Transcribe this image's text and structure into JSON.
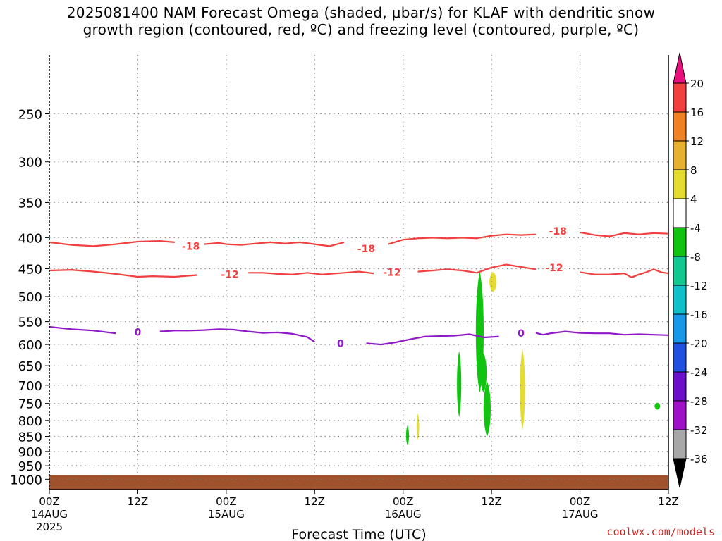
{
  "chart_data": {
    "type": "heatmap",
    "title_line1": "2025081400 NAM Forecast Omega (shaded, μbar/s) for KLAF with dendritic snow",
    "title_line2": "growth region (contoured, red, ºC) and freezing level (contoured, purple, ºC)",
    "xlabel": "Forecast Time (UTC)",
    "ylabel": "",
    "x_unit": "hours since 2025-08-14 00Z",
    "xlim": [
      0,
      84
    ],
    "x_ticks": [
      {
        "h": 0,
        "l1": "00Z",
        "l2": "14AUG",
        "l3": "2025"
      },
      {
        "h": 12,
        "l1": "12Z",
        "l2": "",
        "l3": ""
      },
      {
        "h": 24,
        "l1": "00Z",
        "l2": "15AUG",
        "l3": ""
      },
      {
        "h": 36,
        "l1": "12Z",
        "l2": "",
        "l3": ""
      },
      {
        "h": 48,
        "l1": "00Z",
        "l2": "16AUG",
        "l3": ""
      },
      {
        "h": 60,
        "l1": "12Z",
        "l2": "",
        "l3": ""
      },
      {
        "h": 72,
        "l1": "00Z",
        "l2": "17AUG",
        "l3": ""
      },
      {
        "h": 84,
        "l1": "12Z",
        "l2": "",
        "l3": ""
      }
    ],
    "y_scale": "log",
    "y_unit": "hPa",
    "ylim": [
      1040,
      200
    ],
    "y_ticks": [
      250,
      300,
      350,
      400,
      450,
      500,
      550,
      600,
      650,
      700,
      750,
      800,
      850,
      900,
      950,
      1000
    ],
    "grid": true,
    "colorbar": {
      "label_values": [
        "20",
        "16",
        "12",
        "8",
        "4",
        "-4",
        "-8",
        "-12",
        "-16",
        "-20",
        "-24",
        "-28",
        "-32",
        "-36"
      ],
      "colors": [
        "#e8107e",
        "#f04040",
        "#f08020",
        "#e8b030",
        "#e4dc30",
        "#ffffff",
        "#10c410",
        "#10c890",
        "#10c0c8",
        "#1898e8",
        "#2050e0",
        "#6a10c8",
        "#a010c8",
        "#a8a8a8",
        "#000000"
      ]
    },
    "contours": [
      {
        "name": "-18",
        "color": "#f04040",
        "label_text": "-18",
        "points": [
          [
            0,
            407
          ],
          [
            3,
            411
          ],
          [
            6,
            413
          ],
          [
            9,
            410
          ],
          [
            12,
            406
          ],
          [
            15,
            405
          ],
          [
            17,
            407
          ],
          [
            19,
            413
          ],
          [
            21,
            410
          ],
          [
            23,
            408
          ],
          [
            24,
            410
          ],
          [
            26,
            411
          ],
          [
            28,
            409
          ],
          [
            30,
            407
          ],
          [
            32,
            409
          ],
          [
            34,
            407
          ],
          [
            36,
            410
          ],
          [
            38,
            413
          ],
          [
            40,
            407
          ],
          [
            42,
            410
          ],
          [
            44,
            414
          ],
          [
            46,
            410
          ],
          [
            48,
            403
          ],
          [
            50,
            401
          ],
          [
            52,
            400
          ],
          [
            54,
            401
          ],
          [
            56,
            400
          ],
          [
            58,
            401
          ],
          [
            60,
            397
          ],
          [
            62,
            395
          ],
          [
            64,
            396
          ],
          [
            66,
            395
          ],
          [
            68,
            393
          ],
          [
            70,
            395
          ],
          [
            72,
            392
          ],
          [
            74,
            396
          ],
          [
            76,
            398
          ],
          [
            78,
            393
          ],
          [
            80,
            395
          ],
          [
            82,
            393
          ],
          [
            84,
            394
          ]
        ],
        "labels": [
          [
            19.2,
            413
          ],
          [
            43,
            417
          ],
          [
            69,
            390
          ]
        ]
      },
      {
        "name": "-12",
        "color": "#f04040",
        "label_text": "-12",
        "points": [
          [
            0,
            453
          ],
          [
            3,
            452
          ],
          [
            6,
            455
          ],
          [
            9,
            459
          ],
          [
            12,
            464
          ],
          [
            14,
            463
          ],
          [
            17,
            464
          ],
          [
            20,
            461
          ],
          [
            23,
            459
          ],
          [
            25,
            458
          ],
          [
            27,
            457
          ],
          [
            29,
            457
          ],
          [
            31,
            459
          ],
          [
            33,
            460
          ],
          [
            35,
            457
          ],
          [
            37,
            460
          ],
          [
            40,
            457
          ],
          [
            42,
            455
          ],
          [
            44,
            458
          ],
          [
            46,
            457
          ],
          [
            48,
            455
          ],
          [
            50,
            455
          ],
          [
            52,
            453
          ],
          [
            54,
            451
          ],
          [
            56,
            453
          ],
          [
            58,
            457
          ],
          [
            60,
            448
          ],
          [
            62,
            443
          ],
          [
            64,
            447
          ],
          [
            66,
            451
          ],
          [
            68,
            449
          ],
          [
            70,
            453
          ],
          [
            72,
            456
          ],
          [
            74,
            460
          ],
          [
            76,
            460
          ],
          [
            78,
            458
          ],
          [
            79,
            465
          ],
          [
            80,
            460
          ],
          [
            81,
            456
          ],
          [
            82,
            451
          ],
          [
            83,
            456
          ],
          [
            84,
            458
          ]
        ],
        "labels": [
          [
            24.5,
            460
          ],
          [
            46.5,
            456
          ],
          [
            68.5,
            448
          ]
        ]
      },
      {
        "name": "0",
        "color": "#8f18c8",
        "label_text": "0",
        "points": [
          [
            0,
            561
          ],
          [
            3,
            566
          ],
          [
            6,
            569
          ],
          [
            9,
            575
          ],
          [
            11,
            578
          ],
          [
            13,
            576
          ],
          [
            15,
            571
          ],
          [
            17,
            569
          ],
          [
            19,
            569
          ],
          [
            21,
            568
          ],
          [
            23,
            566
          ],
          [
            25,
            567
          ],
          [
            27,
            571
          ],
          [
            29,
            574
          ],
          [
            31,
            573
          ],
          [
            33,
            576
          ],
          [
            35,
            583
          ],
          [
            36,
            594
          ],
          [
            38,
            603
          ],
          [
            40,
            604
          ],
          [
            41,
            598
          ],
          [
            43,
            597
          ],
          [
            45,
            600
          ],
          [
            47,
            595
          ],
          [
            49,
            588
          ],
          [
            51,
            582
          ],
          [
            53,
            581
          ],
          [
            55,
            580
          ],
          [
            57,
            577
          ],
          [
            59,
            584
          ],
          [
            61,
            582
          ],
          [
            63,
            583
          ],
          [
            64,
            584
          ],
          [
            65,
            578
          ],
          [
            66,
            574
          ],
          [
            67,
            578
          ],
          [
            68,
            575
          ],
          [
            70,
            571
          ],
          [
            72,
            574
          ],
          [
            74,
            575
          ],
          [
            76,
            575
          ],
          [
            78,
            578
          ],
          [
            80,
            577
          ],
          [
            82,
            578
          ],
          [
            84,
            579
          ]
        ],
        "labels": [
          [
            12,
            572
          ],
          [
            39.5,
            597
          ],
          [
            64,
            575
          ]
        ]
      }
    ],
    "shaded_regions": [
      {
        "color": "#10c410",
        "center": [
          58.4,
          540
        ],
        "half_width_h": 0.55,
        "p_top": 455,
        "p_bottom": 720
      },
      {
        "color": "#10c410",
        "center": [
          58.9,
          680
        ],
        "half_width_h": 0.45,
        "p_top": 620,
        "p_bottom": 720
      },
      {
        "color": "#10c410",
        "center": [
          59.4,
          770
        ],
        "half_width_h": 0.5,
        "p_top": 690,
        "p_bottom": 850
      },
      {
        "color": "#10c410",
        "center": [
          55.6,
          700
        ],
        "half_width_h": 0.3,
        "p_top": 615,
        "p_bottom": 790
      },
      {
        "color": "#10c410",
        "center": [
          48.6,
          845
        ],
        "half_width_h": 0.2,
        "p_top": 815,
        "p_bottom": 880
      },
      {
        "color": "#e4dc30",
        "center": [
          64.2,
          710
        ],
        "half_width_h": 0.35,
        "p_top": 610,
        "p_bottom": 830
      },
      {
        "color": "#e4dc30",
        "center": [
          60.2,
          470
        ],
        "half_width_h": 0.5,
        "p_top": 455,
        "p_bottom": 492
      },
      {
        "color": "#e4dc30",
        "center": [
          50.0,
          815
        ],
        "half_width_h": 0.18,
        "p_top": 780,
        "p_bottom": 860
      },
      {
        "color": "#10c410",
        "center": [
          82.5,
          757
        ],
        "half_width_h": 0.4,
        "p_top": 748,
        "p_bottom": 768
      }
    ],
    "ground": {
      "color": "#a0522d",
      "p_top": 985
    }
  },
  "credit": "coolwx.com/models"
}
